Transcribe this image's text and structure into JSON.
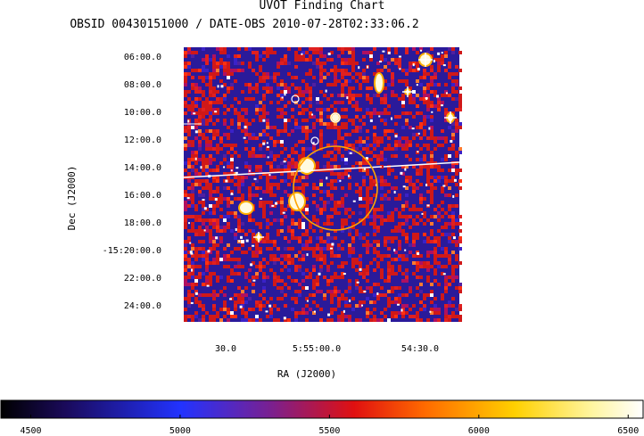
{
  "chart_data": {
    "type": "heatmap",
    "title": "UVOT Finding Chart",
    "subtitle": "OBSID 00430151000 / DATE-OBS 2010-07-28T02:33:06.2",
    "xlabel": "RA (J2000)",
    "ylabel": "Dec (J2000)",
    "x_ticks": [
      "30.0",
      "5:55:00.0",
      "54:30.0"
    ],
    "y_ticks": [
      "06:00.0",
      "08:00.0",
      "10:00.0",
      "12:00.0",
      "14:00.0",
      "16:00.0",
      "18:00.0",
      "-15:20:00.0",
      "22:00.0",
      "24:00.0"
    ],
    "colorbar": {
      "ticks": [
        4500,
        5000,
        5500,
        6000,
        6500
      ],
      "range": [
        4400,
        6550
      ],
      "colormap": [
        "#000000",
        "#0000ff",
        "#ff0000",
        "#ffff00",
        "#ffffff"
      ]
    },
    "overlays": {
      "error_circle_color": "#ffa500",
      "source_marker_color": "#ffffff"
    },
    "grid": false
  }
}
